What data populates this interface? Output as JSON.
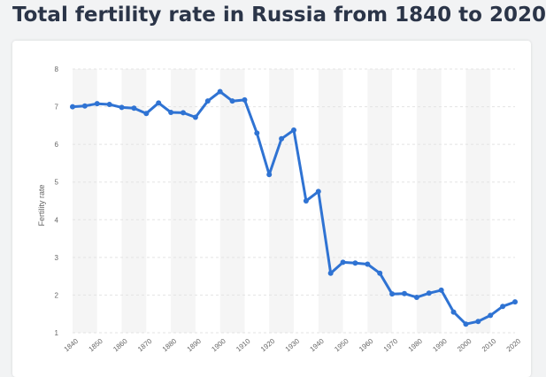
{
  "title": "Total fertility rate in Russia from 1840 to 2020",
  "chart_data": {
    "type": "line",
    "title": "Total fertility rate in Russia from 1840 to 2020",
    "xlabel": "",
    "ylabel": "Fertility rate",
    "xlim": [
      1840,
      2020
    ],
    "ylim": [
      1,
      8
    ],
    "yticks": [
      1,
      2,
      3,
      4,
      5,
      6,
      7,
      8
    ],
    "xticks": [
      1840,
      1850,
      1860,
      1870,
      1880,
      1890,
      1900,
      1910,
      1920,
      1930,
      1940,
      1950,
      1960,
      1970,
      1980,
      1990,
      2000,
      2010,
      2020
    ],
    "grid": true,
    "color": "#2f73d3",
    "x": [
      1840,
      1845,
      1850,
      1855,
      1860,
      1865,
      1870,
      1875,
      1880,
      1885,
      1890,
      1895,
      1900,
      1905,
      1910,
      1915,
      1920,
      1925,
      1930,
      1935,
      1940,
      1945,
      1950,
      1955,
      1960,
      1965,
      1970,
      1975,
      1980,
      1985,
      1990,
      1995,
      2000,
      2005,
      2010,
      2015,
      2020
    ],
    "y": [
      7.0,
      7.02,
      7.08,
      7.06,
      6.98,
      6.96,
      6.82,
      7.1,
      6.85,
      6.84,
      6.72,
      7.15,
      7.4,
      7.15,
      7.18,
      6.3,
      5.2,
      6.15,
      6.38,
      4.5,
      4.75,
      2.58,
      2.87,
      2.85,
      2.82,
      2.58,
      2.03,
      2.04,
      1.94,
      2.05,
      2.13,
      1.55,
      1.23,
      1.3,
      1.46,
      1.7,
      1.82
    ]
  }
}
